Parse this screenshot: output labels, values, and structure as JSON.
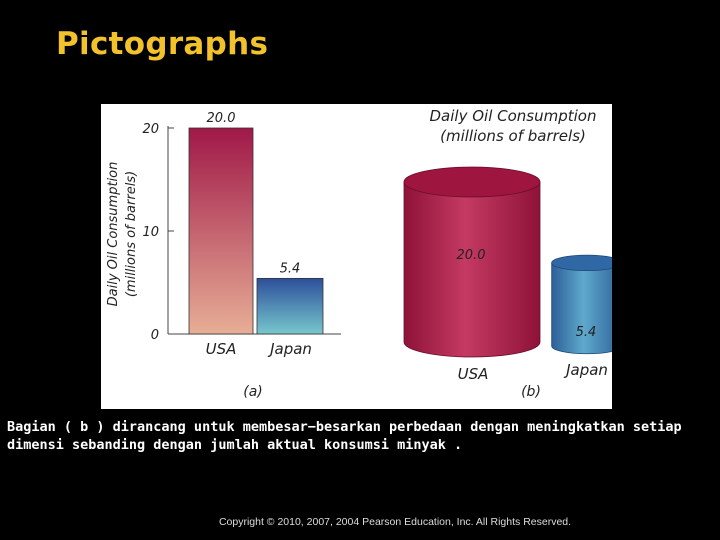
{
  "slide": {
    "title": "Pictographs",
    "caption": "Bagian ( b ) dirancang untuk membesar−besarkan perbedaan dengan meningkatkan setiap dimensi sebanding dengan jumlah aktual konsumsi minyak .",
    "copyright": "Copyright © 2010, 2007, 2004 Pearson Education, Inc. All Rights Reserved."
  },
  "colors": {
    "usa_top": "#a01848",
    "usa_bottom": "#e7ae96",
    "japan_top": "#2d4f9a",
    "japan_bottom": "#77c7cd",
    "cyl_usa_body": "#c43a62",
    "cyl_usa_top": "#9e1540",
    "cyl_japan_body": "#5fa9cc",
    "cyl_japan_top": "#2f68a5",
    "title": "#f3c22b"
  },
  "chart_data": [
    {
      "type": "bar",
      "panel_label": "(a)",
      "categories": [
        "USA",
        "Japan"
      ],
      "values": [
        20.0,
        5.4
      ],
      "data_labels": [
        "20.0",
        "5.4"
      ],
      "ylabel": "Daily Oil Consumption (millions of barrels)",
      "ylim": [
        0,
        20
      ],
      "yticks": [
        "0",
        "10",
        "20"
      ]
    },
    {
      "type": "pictograph",
      "panel_label": "(b)",
      "title_line1": "Daily Oil Consumption",
      "title_line2": "(millions of barrels)",
      "categories": [
        "USA",
        "Japan"
      ],
      "values": [
        20.0,
        5.4
      ],
      "data_labels": [
        "20.0",
        "5.4"
      ]
    }
  ]
}
